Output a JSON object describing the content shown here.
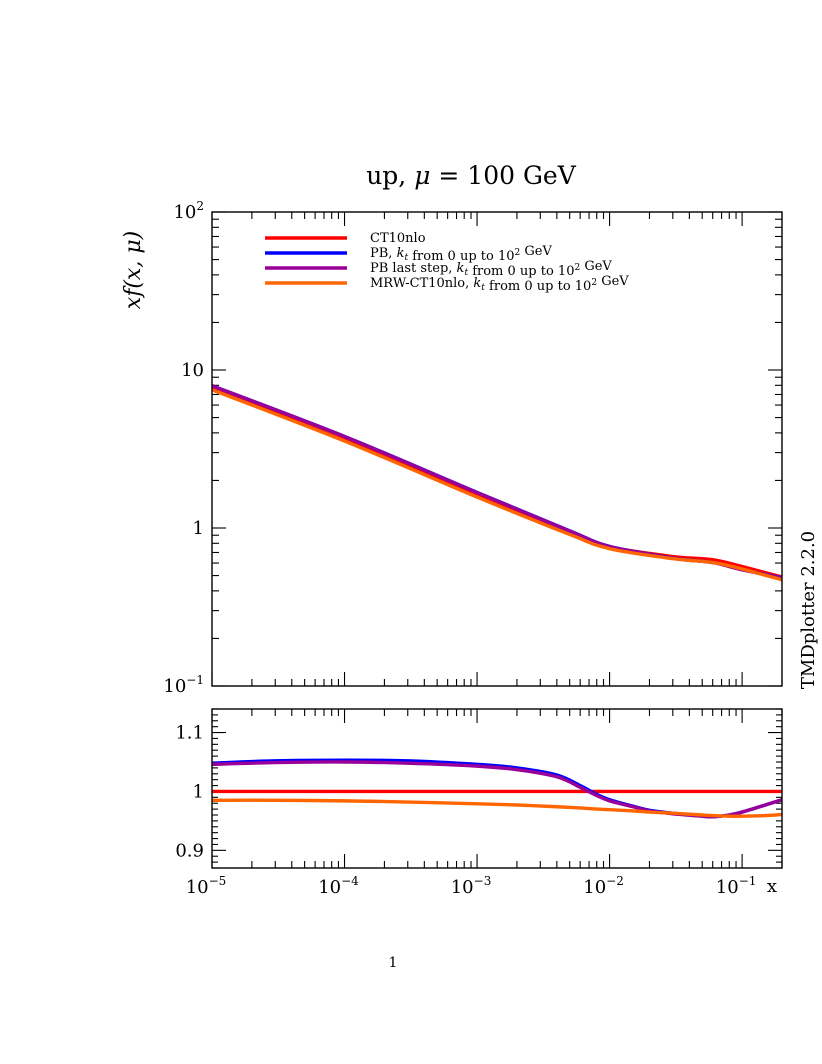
{
  "chart_data": [
    {
      "type": "line",
      "title": "up, μ = 100 GeV",
      "xlabel": "x",
      "ylabel": "xf(x, μ)",
      "xscale": "log",
      "yscale": "log",
      "xlim": [
        1e-05,
        0.2
      ],
      "ylim": [
        0.1,
        100
      ],
      "x_ticks": [
        {
          "value": 1e-05,
          "base": "10",
          "exp": "−5"
        },
        {
          "value": 0.0001,
          "base": "10",
          "exp": "−4"
        },
        {
          "value": 0.001,
          "base": "10",
          "exp": "−3"
        },
        {
          "value": 0.01,
          "base": "10",
          "exp": "−2"
        },
        {
          "value": 0.1,
          "base": "10",
          "exp": "−1"
        }
      ],
      "y_ticks": [
        {
          "value": 100,
          "base": "10",
          "exp": "2"
        },
        {
          "value": 10,
          "base": "10",
          "exp": ""
        },
        {
          "value": 1,
          "base": "1",
          "exp": ""
        },
        {
          "value": 0.1,
          "base": "10",
          "exp": "−1"
        }
      ],
      "legend_position": "top-left",
      "x": [
        1e-05,
        0.0001,
        0.001,
        0.005,
        0.01,
        0.03,
        0.06,
        0.1,
        0.2
      ],
      "series": [
        {
          "name": "CT10nlo",
          "color": "#ff0000",
          "values": [
            7.6,
            3.6,
            1.6,
            0.93,
            0.76,
            0.66,
            0.63,
            0.57,
            0.49
          ]
        },
        {
          "name": "PB, kt from 0 up to 10² GeV",
          "color": "#0000ff",
          "values": [
            7.95,
            3.8,
            1.68,
            0.96,
            0.765,
            0.645,
            0.605,
            0.545,
            0.485
          ]
        },
        {
          "name": "PB last step, kt from 0 up to 10² GeV",
          "color": "#990099",
          "values": [
            7.95,
            3.79,
            1.675,
            0.957,
            0.763,
            0.643,
            0.604,
            0.544,
            0.484
          ]
        },
        {
          "name": "MRW-CT10nlo, kt from 0 up to 10² GeV",
          "color": "#ff6600",
          "values": [
            7.5,
            3.55,
            1.57,
            0.91,
            0.74,
            0.64,
            0.605,
            0.55,
            0.47
          ]
        }
      ]
    },
    {
      "type": "line",
      "xscale": "log",
      "xlim": [
        1e-05,
        0.2
      ],
      "ylim": [
        0.87,
        1.14
      ],
      "y_ticks": [
        1.1,
        1,
        0.9
      ],
      "x": [
        1e-05,
        3e-05,
        0.0001,
        0.0003,
        0.001,
        0.002,
        0.004,
        0.006,
        0.008,
        0.01,
        0.015,
        0.02,
        0.03,
        0.05,
        0.06,
        0.08,
        0.1,
        0.15,
        0.2
      ],
      "series": [
        {
          "name": "CT10nlo",
          "color": "#ff0000",
          "values": [
            1,
            1,
            1,
            1,
            1,
            1,
            1,
            1,
            1,
            1,
            1,
            1,
            1,
            1,
            1,
            1,
            1,
            1,
            1
          ]
        },
        {
          "name": "PB, kt from 0 up to 10² GeV",
          "color": "#0000ff",
          "values": [
            1.048,
            1.052,
            1.053,
            1.052,
            1.046,
            1.04,
            1.028,
            1.01,
            0.995,
            0.986,
            0.975,
            0.968,
            0.963,
            0.958,
            0.957,
            0.96,
            0.965,
            0.977,
            0.986
          ]
        },
        {
          "name": "PB last step, kt from 0 up to 10² GeV",
          "color": "#990099",
          "values": [
            1.046,
            1.049,
            1.05,
            1.048,
            1.043,
            1.037,
            1.025,
            1.007,
            0.993,
            0.984,
            0.974,
            0.967,
            0.962,
            0.958,
            0.957,
            0.96,
            0.965,
            0.977,
            0.986
          ]
        },
        {
          "name": "MRW-CT10nlo, kt from 0 up to 10² GeV",
          "color": "#ff6600",
          "values": [
            0.985,
            0.985,
            0.984,
            0.982,
            0.979,
            0.977,
            0.974,
            0.972,
            0.97,
            0.969,
            0.967,
            0.965,
            0.963,
            0.96,
            0.959,
            0.958,
            0.958,
            0.959,
            0.961
          ]
        }
      ]
    }
  ],
  "side_label": "TMDplotter 2.2.0",
  "page_number": "1"
}
